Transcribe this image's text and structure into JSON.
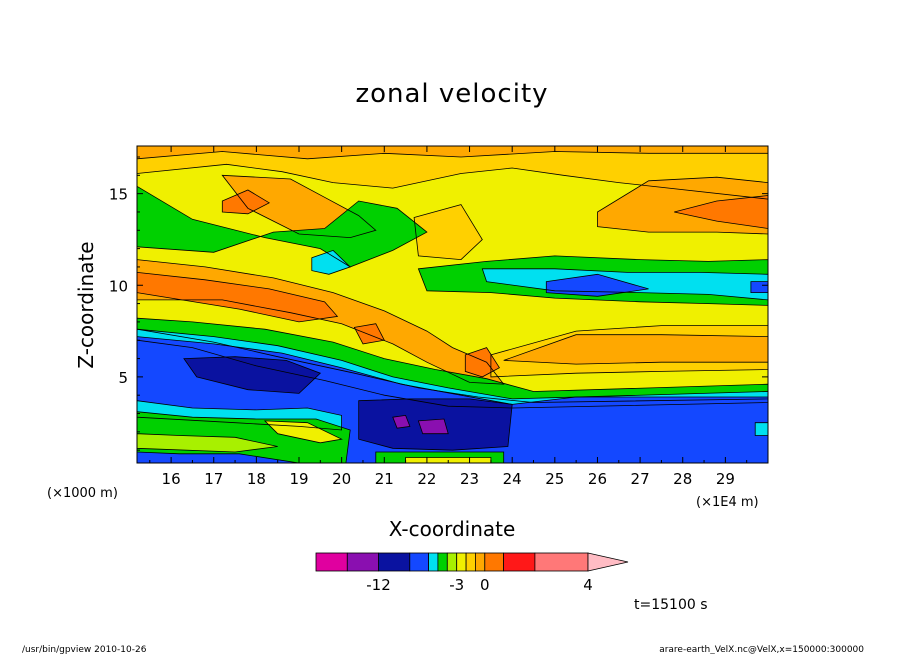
{
  "chart_data": {
    "type": "heatmap",
    "title": "zonal velocity",
    "xlabel": "X-coordinate",
    "ylabel": "Z-coordinate",
    "x_unit": "(×1E4 m)",
    "y_unit": "(×1000 m)",
    "xlim": [
      15.2,
      30.0
    ],
    "ylim": [
      0.3,
      17.6
    ],
    "x_ticks": [
      "16",
      "17",
      "18",
      "19",
      "20",
      "21",
      "22",
      "23",
      "24",
      "25",
      "26",
      "27",
      "28",
      "29"
    ],
    "y_ticks": [
      "5",
      "10",
      "15"
    ],
    "colorbar": {
      "colors": [
        "#e0009f",
        "#8a0fb0",
        "#0a12a0",
        "#1448ff",
        "#00e0f0",
        "#00d000",
        "#a8f000",
        "#f0f000",
        "#ffd000",
        "#ffa800",
        "#ff7800",
        "#ff1818",
        "#ff7878",
        "#ffbcc4"
      ],
      "labels": [
        {
          "text": "-12",
          "value": -12
        },
        {
          "text": "-3",
          "value": -3
        },
        {
          "text": "0",
          "value": 0
        },
        {
          "text": "4",
          "value": 4
        }
      ]
    },
    "time_label": "t=15100 s",
    "footer_left": "/usr/bin/gpview   2010-10-26",
    "footer_right": "arare-earth_VelX.nc@VelX,x=150000:300000",
    "regions": [
      {
        "name": "background-yellow",
        "color": "#f0f000",
        "x": [
          15.2,
          30.0,
          30.0,
          15.2
        ],
        "y": [
          0.3,
          0.3,
          17.6,
          17.6
        ]
      },
      {
        "name": "top-light-orange",
        "color": "#ffd000",
        "x": [
          15.2,
          30.0,
          30.0,
          26.5,
          25.2,
          24.0,
          22.8,
          21.2,
          19.8,
          18.6,
          17.3,
          15.2
        ],
        "y": [
          17.6,
          17.6,
          14.7,
          15.6,
          16.0,
          16.4,
          16.1,
          15.3,
          15.6,
          16.2,
          16.6,
          16.1
        ]
      },
      {
        "name": "top-orange",
        "color": "#ffa800",
        "x": [
          15.2,
          30.0,
          30.0,
          27.2,
          25.0,
          22.8,
          21.0,
          19.2,
          17.2,
          15.2
        ],
        "y": [
          17.6,
          17.6,
          17.2,
          17.2,
          17.3,
          17.0,
          17.2,
          16.9,
          17.3,
          16.9
        ]
      },
      {
        "name": "right-upper-orange",
        "color": "#ffa800",
        "x": [
          26.0,
          27.2,
          28.8,
          30.0,
          30.0,
          28.8,
          27.2,
          26.0
        ],
        "y": [
          14.0,
          15.7,
          15.9,
          15.6,
          12.8,
          12.9,
          12.9,
          13.2
        ]
      },
      {
        "name": "right-core-dark-orange",
        "color": "#ff7800",
        "x": [
          27.8,
          28.8,
          30.0,
          30.0,
          28.8
        ],
        "y": [
          14.0,
          14.6,
          14.9,
          13.1,
          13.5
        ]
      },
      {
        "name": "central-left-orange",
        "color": "#ffa800",
        "x": [
          17.2,
          18.8,
          19.6,
          20.4,
          20.8,
          20.2,
          19.0,
          17.8
        ],
        "y": [
          16.0,
          15.8,
          14.8,
          13.8,
          13.0,
          12.6,
          12.8,
          14.2
        ]
      },
      {
        "name": "upper-left-orange-cell",
        "color": "#ff7800",
        "x": [
          17.2,
          17.8,
          18.3,
          17.8,
          17.2
        ],
        "y": [
          14.6,
          15.2,
          14.5,
          13.9,
          14.0
        ]
      },
      {
        "name": "center-orange-patch",
        "color": "#ffd000",
        "x": [
          21.7,
          22.8,
          23.3,
          22.8,
          21.8
        ],
        "y": [
          13.7,
          14.4,
          12.5,
          11.4,
          11.6
        ]
      },
      {
        "name": "upper-green-band",
        "color": "#00d000",
        "x": [
          15.2,
          16.5,
          18.2,
          19.5,
          20.2,
          21.2,
          22.0,
          21.3,
          20.4,
          19.6,
          18.4,
          17.0,
          15.2
        ],
        "y": [
          15.4,
          13.6,
          12.6,
          12.0,
          11.0,
          11.9,
          12.9,
          14.2,
          14.6,
          13.1,
          12.9,
          11.8,
          12.1
        ]
      },
      {
        "name": "upper-cyan-spots",
        "color": "#00e0f0",
        "x": [
          19.3,
          19.8,
          20.2,
          19.7,
          19.3
        ],
        "y": [
          11.5,
          11.9,
          11.0,
          10.6,
          10.8
        ]
      },
      {
        "name": "right-green-band",
        "color": "#00d000",
        "x": [
          21.8,
          23.4,
          25.0,
          27.0,
          28.6,
          30.0,
          30.0,
          28.6,
          27.0,
          25.0,
          23.5,
          22.0
        ],
        "y": [
          10.9,
          11.3,
          11.6,
          11.4,
          11.3,
          11.4,
          8.9,
          9.0,
          9.1,
          9.3,
          9.6,
          9.7
        ]
      },
      {
        "name": "right-cyan-band",
        "color": "#00e0f0",
        "x": [
          23.3,
          25.0,
          26.7,
          28.4,
          30.0,
          30.0,
          28.6,
          27.0,
          25.0,
          23.4
        ],
        "y": [
          10.9,
          10.9,
          10.7,
          10.7,
          10.6,
          9.2,
          9.5,
          9.6,
          9.7,
          10.2
        ]
      },
      {
        "name": "right-blue-lens",
        "color": "#1448ff",
        "x": [
          24.8,
          26.0,
          27.2,
          26.0,
          24.8
        ],
        "y": [
          10.2,
          10.6,
          9.8,
          9.4,
          9.6
        ]
      },
      {
        "name": "right-blue-spot",
        "color": "#1448ff",
        "x": [
          29.6,
          30.0,
          30.0,
          29.6
        ],
        "y": [
          10.2,
          10.2,
          9.6,
          9.6
        ]
      },
      {
        "name": "left-orange-band",
        "color": "#ffa800",
        "x": [
          15.2,
          16.8,
          18.4,
          19.8,
          21.0,
          22.0,
          22.6,
          23.4,
          23.8,
          23.0,
          22.0,
          21.2,
          20.0,
          18.8,
          17.2,
          15.2
        ],
        "y": [
          11.4,
          11.0,
          10.4,
          9.6,
          8.6,
          7.5,
          6.6,
          5.8,
          4.6,
          4.7,
          5.8,
          6.8,
          7.9,
          8.5,
          9.2,
          9.2
        ]
      },
      {
        "name": "left-dark-orange-band",
        "color": "#ff7800",
        "x": [
          15.2,
          16.8,
          18.3,
          19.6,
          19.9,
          19.0,
          17.6,
          15.2
        ],
        "y": [
          10.7,
          10.3,
          9.8,
          9.1,
          8.3,
          8.0,
          8.7,
          9.6
        ]
      },
      {
        "name": "center-dark-orange-cell",
        "color": "#ff7800",
        "x": [
          20.3,
          20.8,
          21.0,
          20.5
        ],
        "y": [
          7.7,
          7.9,
          7.0,
          6.8
        ]
      },
      {
        "name": "right-orange-wedge",
        "color": "#ffd000",
        "x": [
          23.5,
          25.5,
          27.5,
          30.0,
          30.0,
          27.5,
          25.5,
          23.5
        ],
        "y": [
          6.2,
          7.5,
          7.8,
          7.8,
          5.4,
          5.3,
          5.2,
          5.0
        ]
      },
      {
        "name": "right-orange-core",
        "color": "#ffa800",
        "x": [
          23.8,
          25.5,
          27.5,
          30.0,
          30.0,
          27.5,
          25.5
        ],
        "y": [
          5.9,
          7.3,
          7.3,
          7.2,
          5.8,
          5.8,
          5.7
        ]
      },
      {
        "name": "mid-right-dark-orange-cell",
        "color": "#ff7800",
        "x": [
          22.9,
          23.4,
          23.7,
          23.3,
          22.9
        ],
        "y": [
          6.2,
          6.6,
          5.5,
          5.0,
          5.3
        ]
      },
      {
        "name": "lower-green-band",
        "color": "#00d000",
        "x": [
          15.2,
          16.5,
          18.2,
          19.8,
          21.0,
          22.2,
          23.4,
          24.5,
          30.0,
          30.0,
          24.5,
          23.2,
          21.8,
          20.3,
          18.5,
          17.0,
          15.2
        ],
        "y": [
          8.2,
          8.0,
          7.6,
          6.9,
          6.0,
          5.4,
          4.9,
          4.2,
          4.6,
          3.8,
          3.6,
          3.9,
          4.4,
          5.2,
          6.1,
          6.9,
          7.6
        ]
      },
      {
        "name": "lower-cyan-band",
        "color": "#00e0f0",
        "x": [
          15.2,
          17.0,
          18.5,
          20.0,
          21.2,
          22.5,
          24.0,
          30.0,
          30.0,
          24.0,
          22.5,
          21.0,
          19.6,
          18.0,
          16.5,
          15.2
        ],
        "y": [
          7.6,
          7.2,
          6.7,
          5.9,
          5.0,
          4.4,
          3.8,
          4.2,
          3.6,
          3.3,
          3.4,
          4.0,
          4.8,
          5.6,
          6.6,
          7.0
        ]
      },
      {
        "name": "main-blue-layer",
        "color": "#1448ff",
        "x": [
          15.2,
          17.0,
          18.6,
          20.0,
          21.4,
          22.8,
          24.0,
          25.5,
          30.0,
          30.0,
          15.2
        ],
        "y": [
          7.2,
          6.8,
          6.3,
          5.5,
          4.6,
          4.0,
          3.5,
          3.9,
          3.9,
          0.3,
          0.3
        ]
      },
      {
        "name": "left-dark-blue-lens",
        "color": "#0a12a0",
        "x": [
          16.3,
          17.5,
          18.7,
          19.5,
          19.0,
          17.8,
          16.6
        ],
        "y": [
          6.0,
          6.1,
          5.9,
          5.2,
          4.1,
          4.3,
          5.0
        ]
      },
      {
        "name": "bottom-dark-blue-cell",
        "color": "#0a12a0",
        "x": [
          20.4,
          21.6,
          23.0,
          24.0,
          23.9,
          22.6,
          21.2,
          20.4
        ],
        "y": [
          3.7,
          3.8,
          3.8,
          3.5,
          1.2,
          1.0,
          1.1,
          1.6
        ]
      },
      {
        "name": "bottom-purple-spot-a",
        "color": "#8a0fb0",
        "x": [
          21.2,
          21.5,
          21.6,
          21.3
        ],
        "y": [
          2.8,
          2.9,
          2.3,
          2.2
        ]
      },
      {
        "name": "bottom-purple-spot-b",
        "color": "#8a0fb0",
        "x": [
          21.8,
          22.4,
          22.5,
          21.9
        ],
        "y": [
          2.6,
          2.7,
          1.9,
          1.9
        ]
      },
      {
        "name": "lower-left-cyan-band",
        "color": "#00e0f0",
        "x": [
          15.2,
          16.5,
          18.0,
          19.2,
          20.0,
          20.0,
          19.0,
          17.5,
          15.2
        ],
        "y": [
          3.7,
          3.3,
          3.2,
          3.3,
          2.9,
          2.1,
          2.3,
          2.5,
          2.8
        ]
      },
      {
        "name": "lower-left-green-band",
        "color": "#00d000",
        "x": [
          15.2,
          16.5,
          18.0,
          19.4,
          20.2,
          20.1,
          19.0,
          17.6,
          16.2,
          15.2
        ],
        "y": [
          3.1,
          2.8,
          2.7,
          2.7,
          2.1,
          0.3,
          0.3,
          0.8,
          0.8,
          0.9
        ]
      },
      {
        "name": "lower-left-yellow-patch",
        "color": "#f0f000",
        "x": [
          18.2,
          19.2,
          20.0,
          19.5,
          18.5
        ],
        "y": [
          2.6,
          2.5,
          1.6,
          1.4,
          1.9
        ]
      },
      {
        "name": "bottom-light-yellow",
        "color": "#a8f000",
        "x": [
          15.2,
          16.2,
          17.5,
          18.5,
          17.5,
          15.2
        ],
        "y": [
          1.9,
          1.8,
          1.7,
          1.2,
          0.9,
          1.1
        ]
      },
      {
        "name": "bottom-center-green",
        "color": "#00d000",
        "x": [
          20.8,
          23.8,
          23.8,
          20.8
        ],
        "y": [
          0.9,
          0.9,
          0.3,
          0.3
        ]
      },
      {
        "name": "bottom-center-yellow",
        "color": "#f0f000",
        "x": [
          21.5,
          23.5,
          23.5,
          21.5
        ],
        "y": [
          0.6,
          0.6,
          0.3,
          0.3
        ]
      },
      {
        "name": "right-edge-cyan",
        "color": "#00e0f0",
        "x": [
          29.7,
          30.0,
          30.0,
          29.7
        ],
        "y": [
          2.5,
          2.5,
          1.8,
          1.8
        ]
      }
    ]
  }
}
